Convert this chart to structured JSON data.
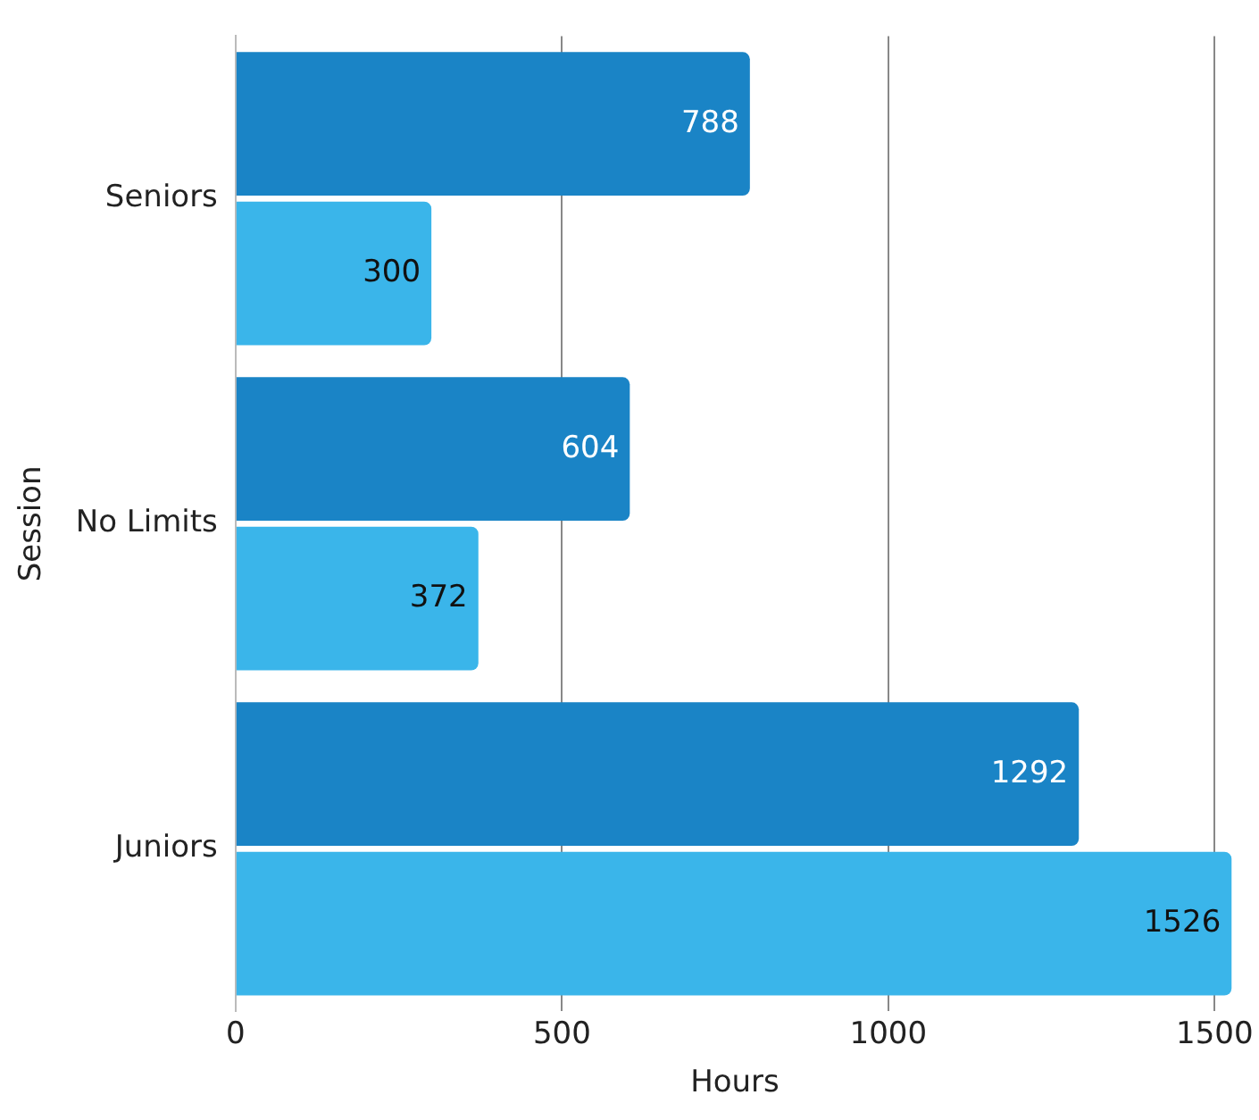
{
  "chart_data": {
    "type": "bar",
    "orientation": "horizontal",
    "xlabel": "Hours",
    "ylabel": "Session",
    "categories": [
      "Seniors",
      "No Limits",
      "Juniors"
    ],
    "series": [
      {
        "color": "#1a84c6",
        "values": [
          788,
          604,
          1292
        ]
      },
      {
        "color": "#3ab5ea",
        "values": [
          300,
          372,
          1526
        ]
      }
    ],
    "xlim": [
      0,
      1530
    ],
    "xticks": [
      0,
      500,
      1000,
      1500
    ],
    "grid": "x",
    "legend": false,
    "data_labels": true
  }
}
